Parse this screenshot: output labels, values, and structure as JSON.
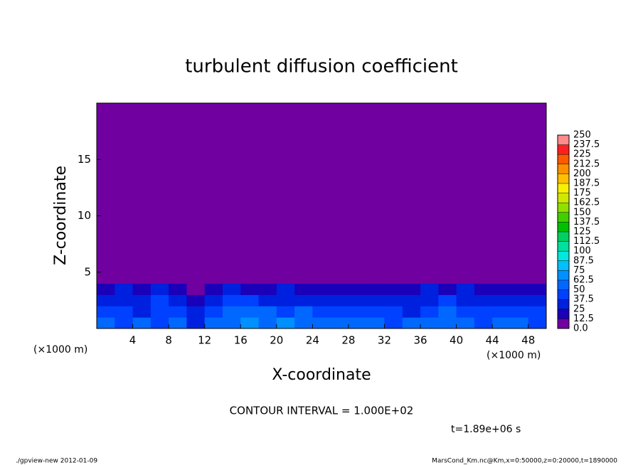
{
  "chart_data": {
    "type": "heatmap",
    "title": "turbulent diffusion coefficient",
    "xlabel": "X-coordinate",
    "ylabel": "Z-coordinate",
    "x_unit": "(×1000 m)",
    "y_unit": "(×1000 m)",
    "contour_note": "CONTOUR INTERVAL = 1.000E+02",
    "time_note": "t=1.89e+06 s",
    "footer_left": "./gpview-new  2012-01-09",
    "footer_right": "MarsCond_Km.nc@Km,x=0:50000,z=0:20000,t=1890000",
    "xlim": [
      0,
      50
    ],
    "ylim": [
      0,
      20
    ],
    "xticks": [
      4,
      8,
      12,
      16,
      20,
      24,
      28,
      32,
      36,
      40,
      44,
      48
    ],
    "yticks": [
      5,
      10,
      15
    ],
    "x_edges": [
      0,
      2,
      4,
      6,
      8,
      10,
      12,
      14,
      16,
      18,
      20,
      22,
      24,
      26,
      28,
      30,
      32,
      34,
      36,
      38,
      40,
      42,
      44,
      46,
      48,
      50
    ],
    "y_edges": [
      0,
      1,
      2,
      3,
      4,
      6,
      20
    ],
    "z": [
      [
        50,
        45,
        55,
        40,
        50,
        35,
        55,
        60,
        70,
        60,
        65,
        60,
        55,
        50,
        55,
        50,
        45,
        55,
        50,
        60,
        55,
        45,
        50,
        55,
        45
      ],
      [
        40,
        45,
        35,
        45,
        40,
        25,
        45,
        55,
        50,
        50,
        45,
        50,
        45,
        40,
        40,
        45,
        40,
        35,
        45,
        50,
        45,
        40,
        45,
        40,
        40
      ],
      [
        30,
        35,
        30,
        40,
        25,
        15,
        30,
        45,
        40,
        35,
        35,
        30,
        30,
        30,
        30,
        35,
        30,
        25,
        35,
        40,
        35,
        30,
        30,
        30,
        30
      ],
      [
        20,
        25,
        20,
        25,
        15,
        8,
        20,
        30,
        15,
        20,
        25,
        20,
        20,
        15,
        20,
        20,
        15,
        15,
        25,
        20,
        25,
        20,
        15,
        20,
        20
      ],
      [
        3,
        2,
        4,
        2,
        1,
        1,
        2,
        4,
        5,
        5,
        2,
        2,
        3,
        3,
        1,
        1,
        1,
        2,
        3,
        2,
        2,
        3,
        2,
        1,
        1
      ],
      [
        1,
        0,
        2,
        1,
        0,
        0,
        0,
        0,
        1,
        1,
        1,
        0,
        0,
        0,
        0,
        0,
        0,
        0,
        1,
        0,
        0,
        1,
        0,
        0,
        0
      ]
    ],
    "colorbar": {
      "levels": [
        {
          "value": 0,
          "label": "0.0"
        },
        12.5,
        25.0,
        37.5,
        50.0,
        62.5,
        75.0,
        87.5,
        100.0,
        112.5,
        125.0,
        137.5,
        150.0,
        162.5,
        175.0,
        187.5,
        200.0,
        212.5,
        225.0,
        237.5,
        250.0
      ],
      "colors": [
        "#7000a0",
        "#1a00b8",
        "#0020e0",
        "#0040ff",
        "#0068ff",
        "#0090ff",
        "#00c0ff",
        "#00e8e0",
        "#00e0a0",
        "#00d060",
        "#00c000",
        "#40d000",
        "#90e000",
        "#d0e800",
        "#f8f000",
        "#ffc000",
        "#ff9000",
        "#ff5a00",
        "#ff2020",
        "#ff8c8c"
      ]
    }
  }
}
